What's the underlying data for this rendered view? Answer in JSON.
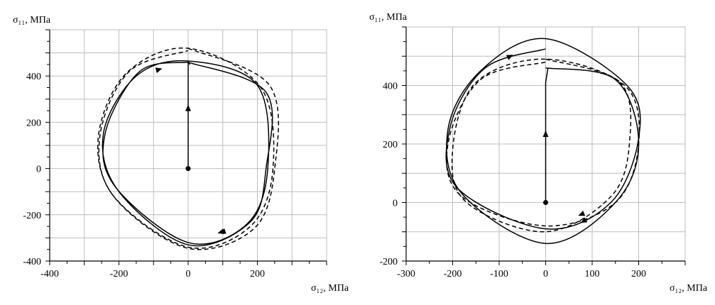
{
  "chart_data": [
    {
      "type": "line",
      "xlabel": "σ₁₂, МПа",
      "ylabel": "σ₁₁, МПа",
      "xlim": [
        -400,
        400
      ],
      "ylim": [
        -400,
        600
      ],
      "xticks": [
        -400,
        -200,
        0,
        200
      ],
      "yticks": [
        -400,
        -200,
        0,
        200,
        400
      ],
      "grid": true,
      "loading_path": [
        [
          0,
          0
        ],
        [
          0,
          460
        ],
        [
          5,
          450
        ]
      ],
      "series": [
        {
          "style": "solid",
          "values": [
            [
              0,
              460
            ],
            [
              225,
              330
            ],
            [
              225,
              0
            ],
            [
              180,
              -230
            ],
            [
              0,
              -330
            ],
            [
              -200,
              -100
            ],
            [
              -245,
              150
            ],
            [
              -150,
              400
            ],
            [
              0,
              465
            ],
            [
              200,
              360
            ],
            [
              230,
              0
            ],
            [
              170,
              -240
            ],
            [
              0,
              -320
            ],
            [
              -210,
              -80
            ],
            [
              -240,
              150
            ],
            [
              -140,
              420
            ],
            [
              0,
              460
            ]
          ]
        },
        {
          "style": "dashed",
          "values": [
            [
              0,
              520
            ],
            [
              235,
              360
            ],
            [
              250,
              0
            ],
            [
              190,
              -260
            ],
            [
              0,
              -345
            ],
            [
              -210,
              -130
            ],
            [
              -260,
              130
            ],
            [
              -180,
              410
            ],
            [
              0,
              520
            ],
            [
              210,
              350
            ],
            [
              245,
              0
            ],
            [
              180,
              -250
            ],
            [
              0,
              -340
            ],
            [
              -215,
              -120
            ],
            [
              -255,
              140
            ],
            [
              -170,
              420
            ],
            [
              0,
              510
            ]
          ]
        }
      ]
    },
    {
      "type": "line",
      "xlabel": "σ₁₂, МПа",
      "ylabel": "σ₁₁, МПа",
      "xlim": [
        -300,
        300
      ],
      "ylim": [
        -200,
        600
      ],
      "xticks": [
        -300,
        -200,
        -100,
        0,
        100,
        200
      ],
      "yticks": [
        -200,
        0,
        200,
        400
      ],
      "grid": true,
      "loading_path": [
        [
          0,
          0
        ],
        [
          0,
          410
        ],
        [
          5,
          460
        ]
      ],
      "series": [
        {
          "style": "solid",
          "values": [
            [
              0,
              460
            ],
            [
              150,
              420
            ],
            [
              200,
              200
            ],
            [
              150,
              0
            ],
            [
              0,
              -140
            ],
            [
              -180,
              30
            ],
            [
              -210,
              250
            ],
            [
              -140,
              450
            ],
            [
              0,
              560
            ],
            [
              175,
              400
            ],
            [
              200,
              220
            ],
            [
              140,
              0
            ],
            [
              0,
              -90
            ],
            [
              -190,
              50
            ],
            [
              -205,
              260
            ],
            [
              -130,
              460
            ],
            [
              0,
              525
            ]
          ]
        },
        {
          "style": "dashed",
          "values": [
            [
              0,
              490
            ],
            [
              160,
              410
            ],
            [
              180,
              200
            ],
            [
              140,
              20
            ],
            [
              0,
              -100
            ],
            [
              -170,
              0
            ],
            [
              -200,
              180
            ],
            [
              -150,
              410
            ],
            [
              0,
              490
            ],
            [
              170,
              400
            ],
            [
              200,
              200
            ],
            [
              150,
              0
            ],
            [
              0,
              -80
            ],
            [
              -180,
              20
            ],
            [
              -210,
              200
            ],
            [
              -140,
              420
            ],
            [
              0,
              480
            ]
          ]
        }
      ]
    }
  ]
}
